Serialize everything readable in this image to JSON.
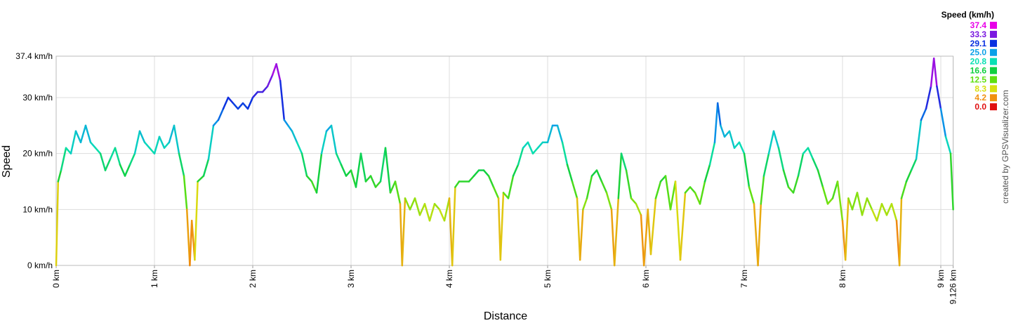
{
  "chart_data": {
    "type": "line",
    "x_label": "Distance",
    "y_label": "Speed",
    "credit": "created by GPSVisualizer.com",
    "legend_title": "Speed (km/h)",
    "color_scale": [
      {
        "value": 37.4,
        "label": "37.4",
        "color": "#e800e8"
      },
      {
        "value": 33.3,
        "label": "33.3",
        "color": "#7a18e0"
      },
      {
        "value": 29.1,
        "label": "29.1",
        "color": "#0a30e0"
      },
      {
        "value": 25,
        "label": "25.0",
        "color": "#0aa0e8"
      },
      {
        "value": 20.8,
        "label": "20.8",
        "color": "#0ae0b4"
      },
      {
        "value": 16.6,
        "label": "16.6",
        "color": "#10d040"
      },
      {
        "value": 12.5,
        "label": "12.5",
        "color": "#60e010"
      },
      {
        "value": 8.3,
        "label": "8.3",
        "color": "#d8e010"
      },
      {
        "value": 4.2,
        "label": "4.2",
        "color": "#f09010"
      },
      {
        "value": 0,
        "label": "0.0",
        "color": "#e01010"
      }
    ],
    "xlim": [
      0,
      9.126
    ],
    "ylim": [
      0,
      37.4
    ],
    "grid": true,
    "xticks": [
      {
        "value": 0,
        "label": "0 km"
      },
      {
        "value": 1,
        "label": "1 km"
      },
      {
        "value": 2,
        "label": "2 km"
      },
      {
        "value": 3,
        "label": "3 km"
      },
      {
        "value": 4,
        "label": "4 km"
      },
      {
        "value": 5,
        "label": "5 km"
      },
      {
        "value": 6,
        "label": "6 km"
      },
      {
        "value": 7,
        "label": "7 km"
      },
      {
        "value": 8,
        "label": "8 km"
      },
      {
        "value": 9,
        "label": "9 km"
      },
      {
        "value": 9.126,
        "label": "9.126 km"
      }
    ],
    "yticks": [
      {
        "value": 0,
        "label": "0 km/h"
      },
      {
        "value": 10,
        "label": "10 km/h"
      },
      {
        "value": 20,
        "label": "20 km/h"
      },
      {
        "value": 30,
        "label": "30 km/h"
      },
      {
        "value": 37.4,
        "label": "37.4 km/h"
      }
    ],
    "x": [
      0,
      0.02,
      0.05,
      0.1,
      0.15,
      0.2,
      0.25,
      0.3,
      0.35,
      0.4,
      0.45,
      0.5,
      0.55,
      0.6,
      0.65,
      0.7,
      0.75,
      0.8,
      0.85,
      0.9,
      0.95,
      1.0,
      1.05,
      1.1,
      1.15,
      1.2,
      1.25,
      1.3,
      1.33,
      1.36,
      1.38,
      1.41,
      1.44,
      1.5,
      1.55,
      1.6,
      1.65,
      1.7,
      1.75,
      1.8,
      1.85,
      1.9,
      1.95,
      2.0,
      2.05,
      2.1,
      2.15,
      2.2,
      2.24,
      2.28,
      2.32,
      2.36,
      2.4,
      2.45,
      2.5,
      2.55,
      2.6,
      2.65,
      2.7,
      2.75,
      2.8,
      2.85,
      2.9,
      2.95,
      3.0,
      3.05,
      3.1,
      3.15,
      3.2,
      3.25,
      3.3,
      3.35,
      3.4,
      3.45,
      3.5,
      3.52,
      3.55,
      3.6,
      3.65,
      3.7,
      3.75,
      3.8,
      3.85,
      3.9,
      3.95,
      4.0,
      4.03,
      4.06,
      4.1,
      4.2,
      4.25,
      4.3,
      4.35,
      4.4,
      4.45,
      4.5,
      4.52,
      4.55,
      4.6,
      4.65,
      4.7,
      4.75,
      4.8,
      4.85,
      4.9,
      4.95,
      5.0,
      5.05,
      5.1,
      5.15,
      5.2,
      5.25,
      5.3,
      5.33,
      5.36,
      5.4,
      5.45,
      5.5,
      5.55,
      5.6,
      5.65,
      5.68,
      5.72,
      5.75,
      5.8,
      5.85,
      5.9,
      5.95,
      5.98,
      6.02,
      6.05,
      6.1,
      6.15,
      6.2,
      6.25,
      6.3,
      6.35,
      6.4,
      6.45,
      6.5,
      6.55,
      6.6,
      6.65,
      6.7,
      6.73,
      6.76,
      6.8,
      6.85,
      6.9,
      6.95,
      7.0,
      7.05,
      7.1,
      7.14,
      7.17,
      7.2,
      7.25,
      7.3,
      7.35,
      7.4,
      7.45,
      7.5,
      7.55,
      7.6,
      7.65,
      7.7,
      7.75,
      7.8,
      7.85,
      7.9,
      7.95,
      8.0,
      8.03,
      8.06,
      8.1,
      8.15,
      8.2,
      8.25,
      8.3,
      8.35,
      8.4,
      8.45,
      8.5,
      8.55,
      8.58,
      8.6,
      8.65,
      8.7,
      8.75,
      8.8,
      8.85,
      8.9,
      8.93,
      8.96,
      9.0,
      9.05,
      9.1,
      9.126
    ],
    "series": [
      {
        "name": "Speed",
        "values": [
          0,
          15,
          17,
          21,
          20,
          24,
          22,
          25,
          22,
          21,
          20,
          17,
          19,
          21,
          18,
          16,
          18,
          20,
          24,
          22,
          21,
          20,
          23,
          21,
          22,
          25,
          20,
          16,
          10,
          0,
          8,
          1,
          15,
          16,
          19,
          25,
          26,
          28,
          30,
          29,
          28,
          29,
          28,
          30,
          31,
          31,
          32,
          34,
          36,
          33,
          26,
          25,
          24,
          22,
          20,
          16,
          15,
          13,
          20,
          24,
          25,
          20,
          18,
          16,
          17,
          14,
          20,
          15,
          16,
          14,
          15,
          21,
          13,
          15,
          11,
          0,
          12,
          10,
          12,
          9,
          11,
          8,
          11,
          10,
          8,
          12,
          0,
          14,
          15,
          15,
          16,
          17,
          17,
          16,
          14,
          12,
          1,
          13,
          12,
          16,
          18,
          21,
          22,
          20,
          21,
          22,
          22,
          25,
          25,
          22,
          18,
          15,
          12,
          1,
          10,
          12,
          16,
          17,
          15,
          13,
          10,
          0,
          12,
          20,
          17,
          12,
          11,
          9,
          0,
          10,
          2,
          12,
          15,
          16,
          10,
          15,
          1,
          13,
          14,
          13,
          11,
          15,
          18,
          22,
          29,
          25,
          23,
          24,
          21,
          22,
          20,
          14,
          11,
          0,
          11,
          16,
          20,
          24,
          21,
          17,
          14,
          13,
          16,
          20,
          21,
          19,
          17,
          14,
          11,
          12,
          15,
          8,
          1,
          12,
          10,
          13,
          9,
          12,
          10,
          8,
          11,
          9,
          11,
          8,
          0,
          12,
          15,
          17,
          19,
          26,
          28,
          32,
          37,
          32,
          28,
          23,
          20,
          10
        ]
      }
    ]
  }
}
